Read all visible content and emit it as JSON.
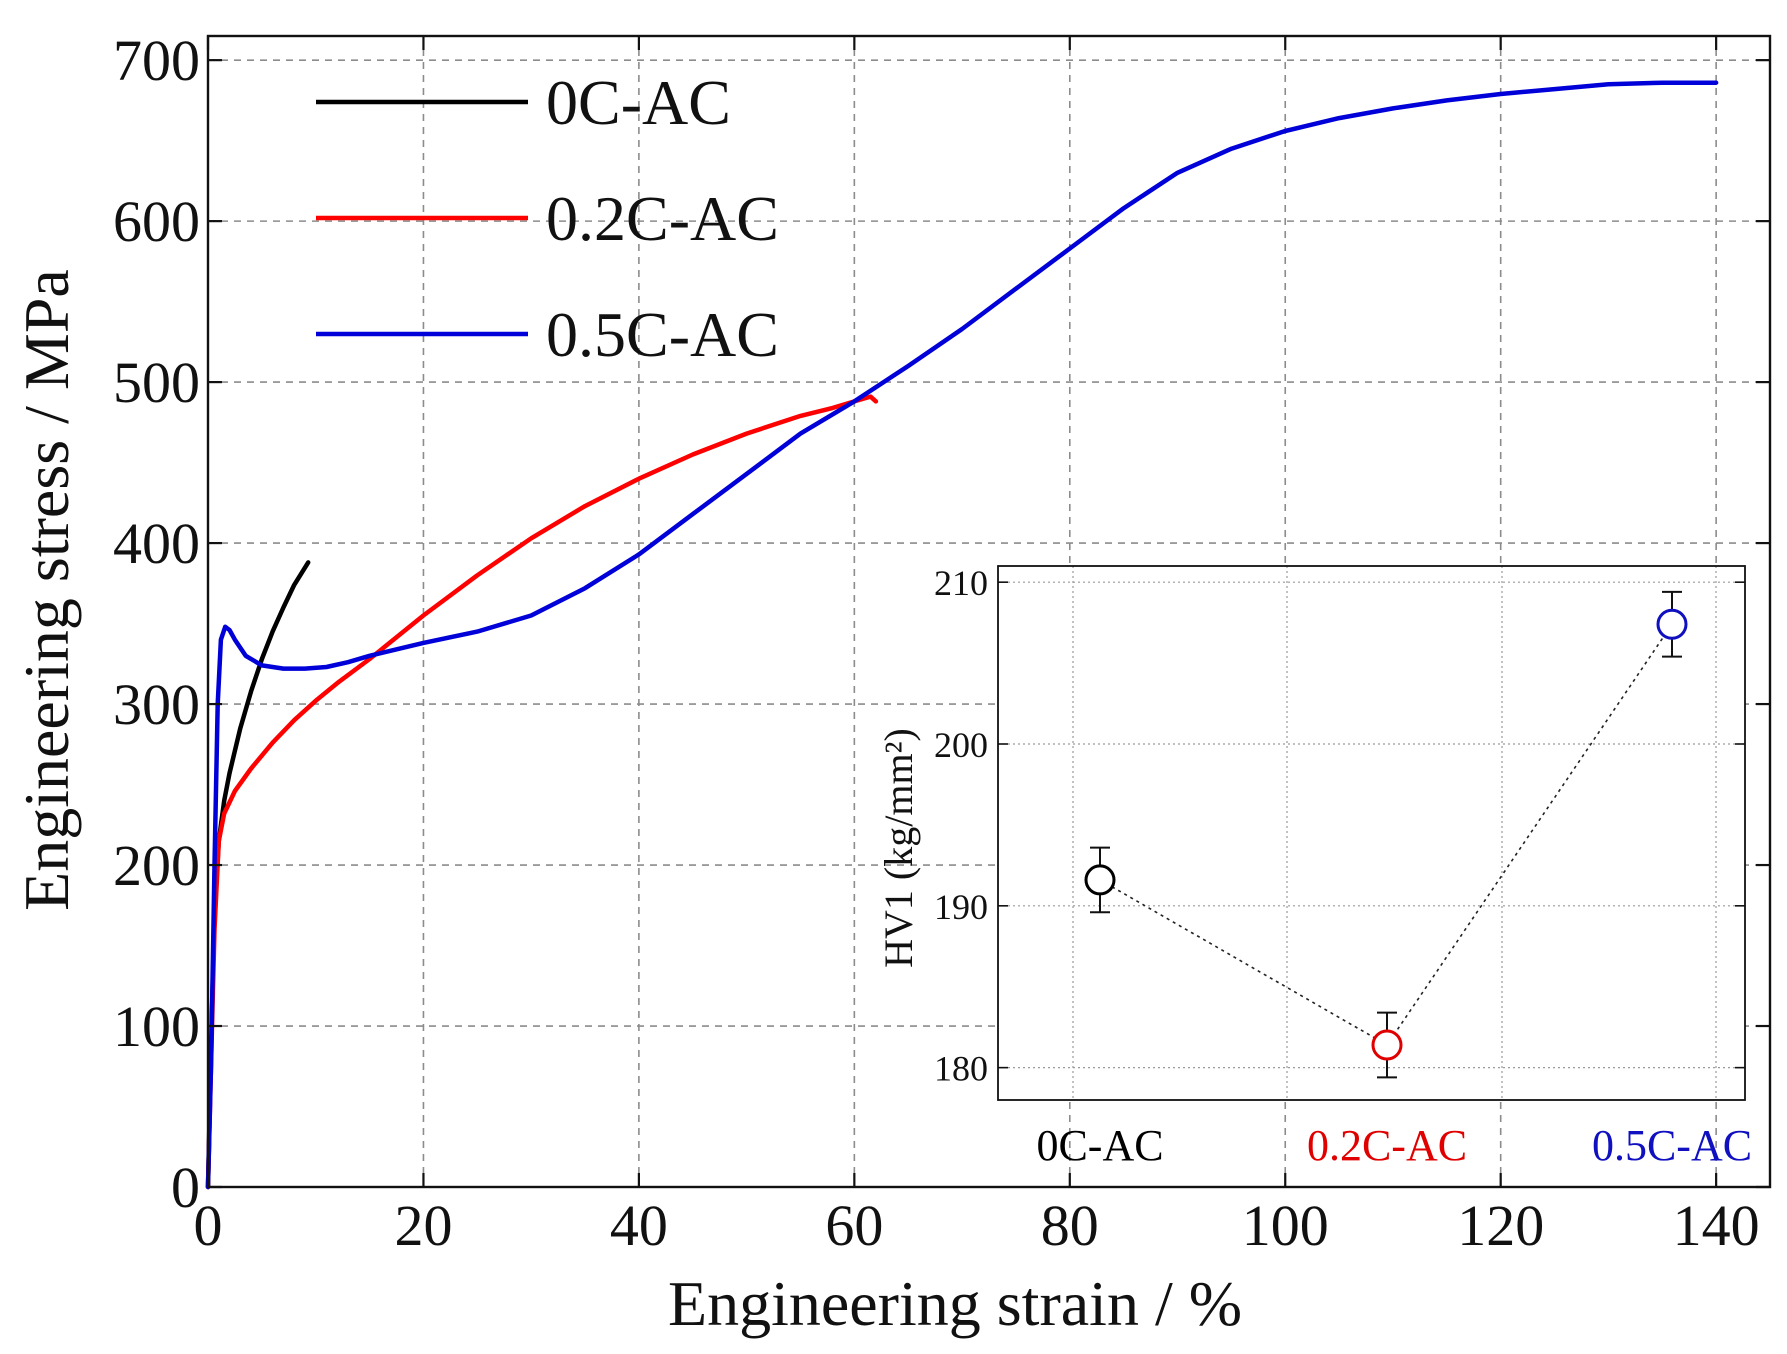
{
  "chart_data": [
    {
      "type": "line",
      "xlabel": "Engineering strain / %",
      "ylabel": "Engineering stress / MPa",
      "xlim": [
        0,
        145
      ],
      "ylim": [
        0,
        715
      ],
      "xticks": [
        0,
        20,
        40,
        60,
        80,
        100,
        120,
        140
      ],
      "yticks": [
        0,
        100,
        200,
        300,
        400,
        500,
        600,
        700
      ],
      "grid": true,
      "legend_position": "top-left",
      "series": [
        {
          "name": "0C-AC",
          "color": "#000000",
          "x": [
            0,
            0.3,
            0.6,
            1.0,
            1.5,
            2.0,
            3.0,
            4.0,
            5.0,
            6.0,
            7.0,
            8.0,
            9.3
          ],
          "y": [
            0,
            90,
            170,
            215,
            240,
            257,
            285,
            308,
            328,
            345,
            360,
            374,
            388
          ]
        },
        {
          "name": "0.2C-AC",
          "color": "#ff0000",
          "x": [
            0,
            0.3,
            0.6,
            1.0,
            1.5,
            2.5,
            4,
            6,
            8,
            10,
            12,
            15,
            20,
            25,
            30,
            35,
            40,
            45,
            50,
            55,
            58,
            60,
            61.5,
            62
          ],
          "y": [
            0,
            80,
            160,
            215,
            232,
            246,
            260,
            276,
            290,
            302,
            313,
            328,
            355,
            380,
            403,
            423,
            440,
            455,
            468,
            479,
            484,
            488,
            491,
            488
          ]
        },
        {
          "name": "0.5C-AC",
          "color": "#0000d8",
          "x": [
            0,
            0.3,
            0.6,
            0.9,
            1.2,
            1.6,
            2.0,
            2.5,
            3.5,
            5,
            7,
            9,
            11,
            13,
            15,
            20,
            25,
            30,
            35,
            40,
            45,
            50,
            55,
            60,
            65,
            70,
            75,
            80,
            85,
            90,
            95,
            100,
            105,
            110,
            115,
            120,
            125,
            130,
            135,
            140
          ],
          "y": [
            0,
            80,
            200,
            300,
            340,
            348,
            346,
            340,
            330,
            324,
            322,
            322,
            323,
            326,
            330,
            338,
            345,
            355,
            372,
            393,
            418,
            443,
            468,
            488,
            510,
            533,
            558,
            583,
            608,
            630,
            645,
            656,
            664,
            670,
            675,
            679,
            682,
            685,
            686,
            686
          ]
        }
      ]
    },
    {
      "type": "scatter",
      "title": "",
      "ylabel": "HV1 (kg/mm²)",
      "ylim": [
        178,
        211
      ],
      "yticks": [
        180,
        190,
        200,
        210
      ],
      "grid": true,
      "categories": [
        "0C-AC",
        "0.2C-AC",
        "0.5C-AC"
      ],
      "values": [
        191.6,
        181.4,
        207.4
      ],
      "errors": [
        2.0,
        2.0,
        2.0
      ],
      "colors": [
        "#000000",
        "#e00000",
        "#1010c0"
      ],
      "connector": "dotted"
    }
  ]
}
